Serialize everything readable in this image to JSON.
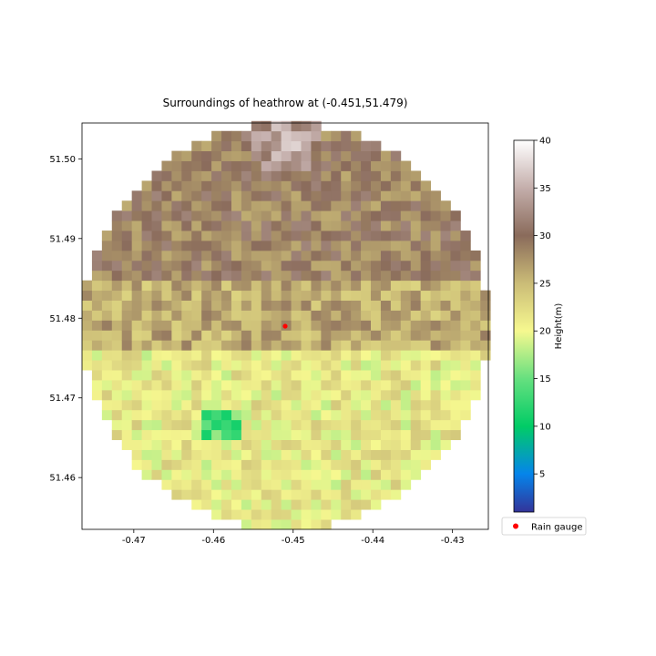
{
  "chart_data": {
    "type": "heatmap",
    "title": "Surroundings of heathrow at (-0.451,51.479)",
    "xlabel": "",
    "ylabel": "",
    "xlim": [
      -0.4765,
      -0.4255
    ],
    "ylim": [
      51.4535,
      51.5045
    ],
    "x_ticks": [
      -0.47,
      -0.46,
      -0.45,
      -0.44,
      -0.43
    ],
    "x_tick_labels": [
      "-0.47",
      "-0.46",
      "-0.45",
      "-0.44",
      "-0.43"
    ],
    "y_ticks": [
      51.46,
      51.47,
      51.48,
      51.49,
      51.5
    ],
    "y_tick_labels": [
      "51.46",
      "51.47",
      "51.48",
      "51.49",
      "51.50"
    ],
    "grid": false,
    "heatmap": {
      "extent": "circle",
      "center": [
        -0.451,
        51.479
      ],
      "radius": 0.0255,
      "cell_size": 0.00125,
      "zones": [
        {
          "description": "hill top",
          "lon": -0.451,
          "lat": 51.502,
          "height": 36
        },
        {
          "description": "northern high ground",
          "lon_min": -0.476,
          "lon_max": -0.426,
          "lat_min": 51.485,
          "lat_max": 51.505,
          "height": 29
        },
        {
          "description": "mid plateau",
          "lon_min": -0.476,
          "lon_max": -0.426,
          "lat_min": 51.476,
          "lat_max": 51.485,
          "height": 26
        },
        {
          "description": "southern lowland",
          "lon_min": -0.476,
          "lon_max": -0.426,
          "lat_min": 51.454,
          "lat_max": 51.476,
          "height": 21
        },
        {
          "description": "reservoir",
          "lon_min": -0.461,
          "lon_max": -0.456,
          "lat_min": 51.465,
          "lat_max": 51.468,
          "height": 14
        }
      ]
    },
    "colorbar": {
      "label": "Height(m)",
      "min": 1,
      "max": 40,
      "ticks": [
        5,
        10,
        15,
        20,
        25,
        30,
        35,
        40
      ],
      "tick_labels": [
        "5",
        "10",
        "15",
        "20",
        "25",
        "30",
        "35",
        "40"
      ],
      "colormap": "terrain",
      "colormap_stops": [
        {
          "value": 1,
          "color": "#333399"
        },
        {
          "value": 5,
          "color": "#0585eb"
        },
        {
          "value": 10,
          "color": "#01cc66"
        },
        {
          "value": 15,
          "color": "#66e07f"
        },
        {
          "value": 20,
          "color": "#f6f88f"
        },
        {
          "value": 25,
          "color": "#cbbc77"
        },
        {
          "value": 30,
          "color": "#8a6b5b"
        },
        {
          "value": 35,
          "color": "#c4aeab"
        },
        {
          "value": 40,
          "color": "#ffffff"
        }
      ]
    },
    "series": [
      {
        "name": "Rain gauge",
        "type": "scatter",
        "marker": "dot",
        "color": "#ff0000",
        "x": [
          -0.451
        ],
        "y": [
          51.479
        ]
      }
    ],
    "legend": {
      "entries": [
        "Rain gauge"
      ],
      "placement": "lower-right"
    }
  }
}
